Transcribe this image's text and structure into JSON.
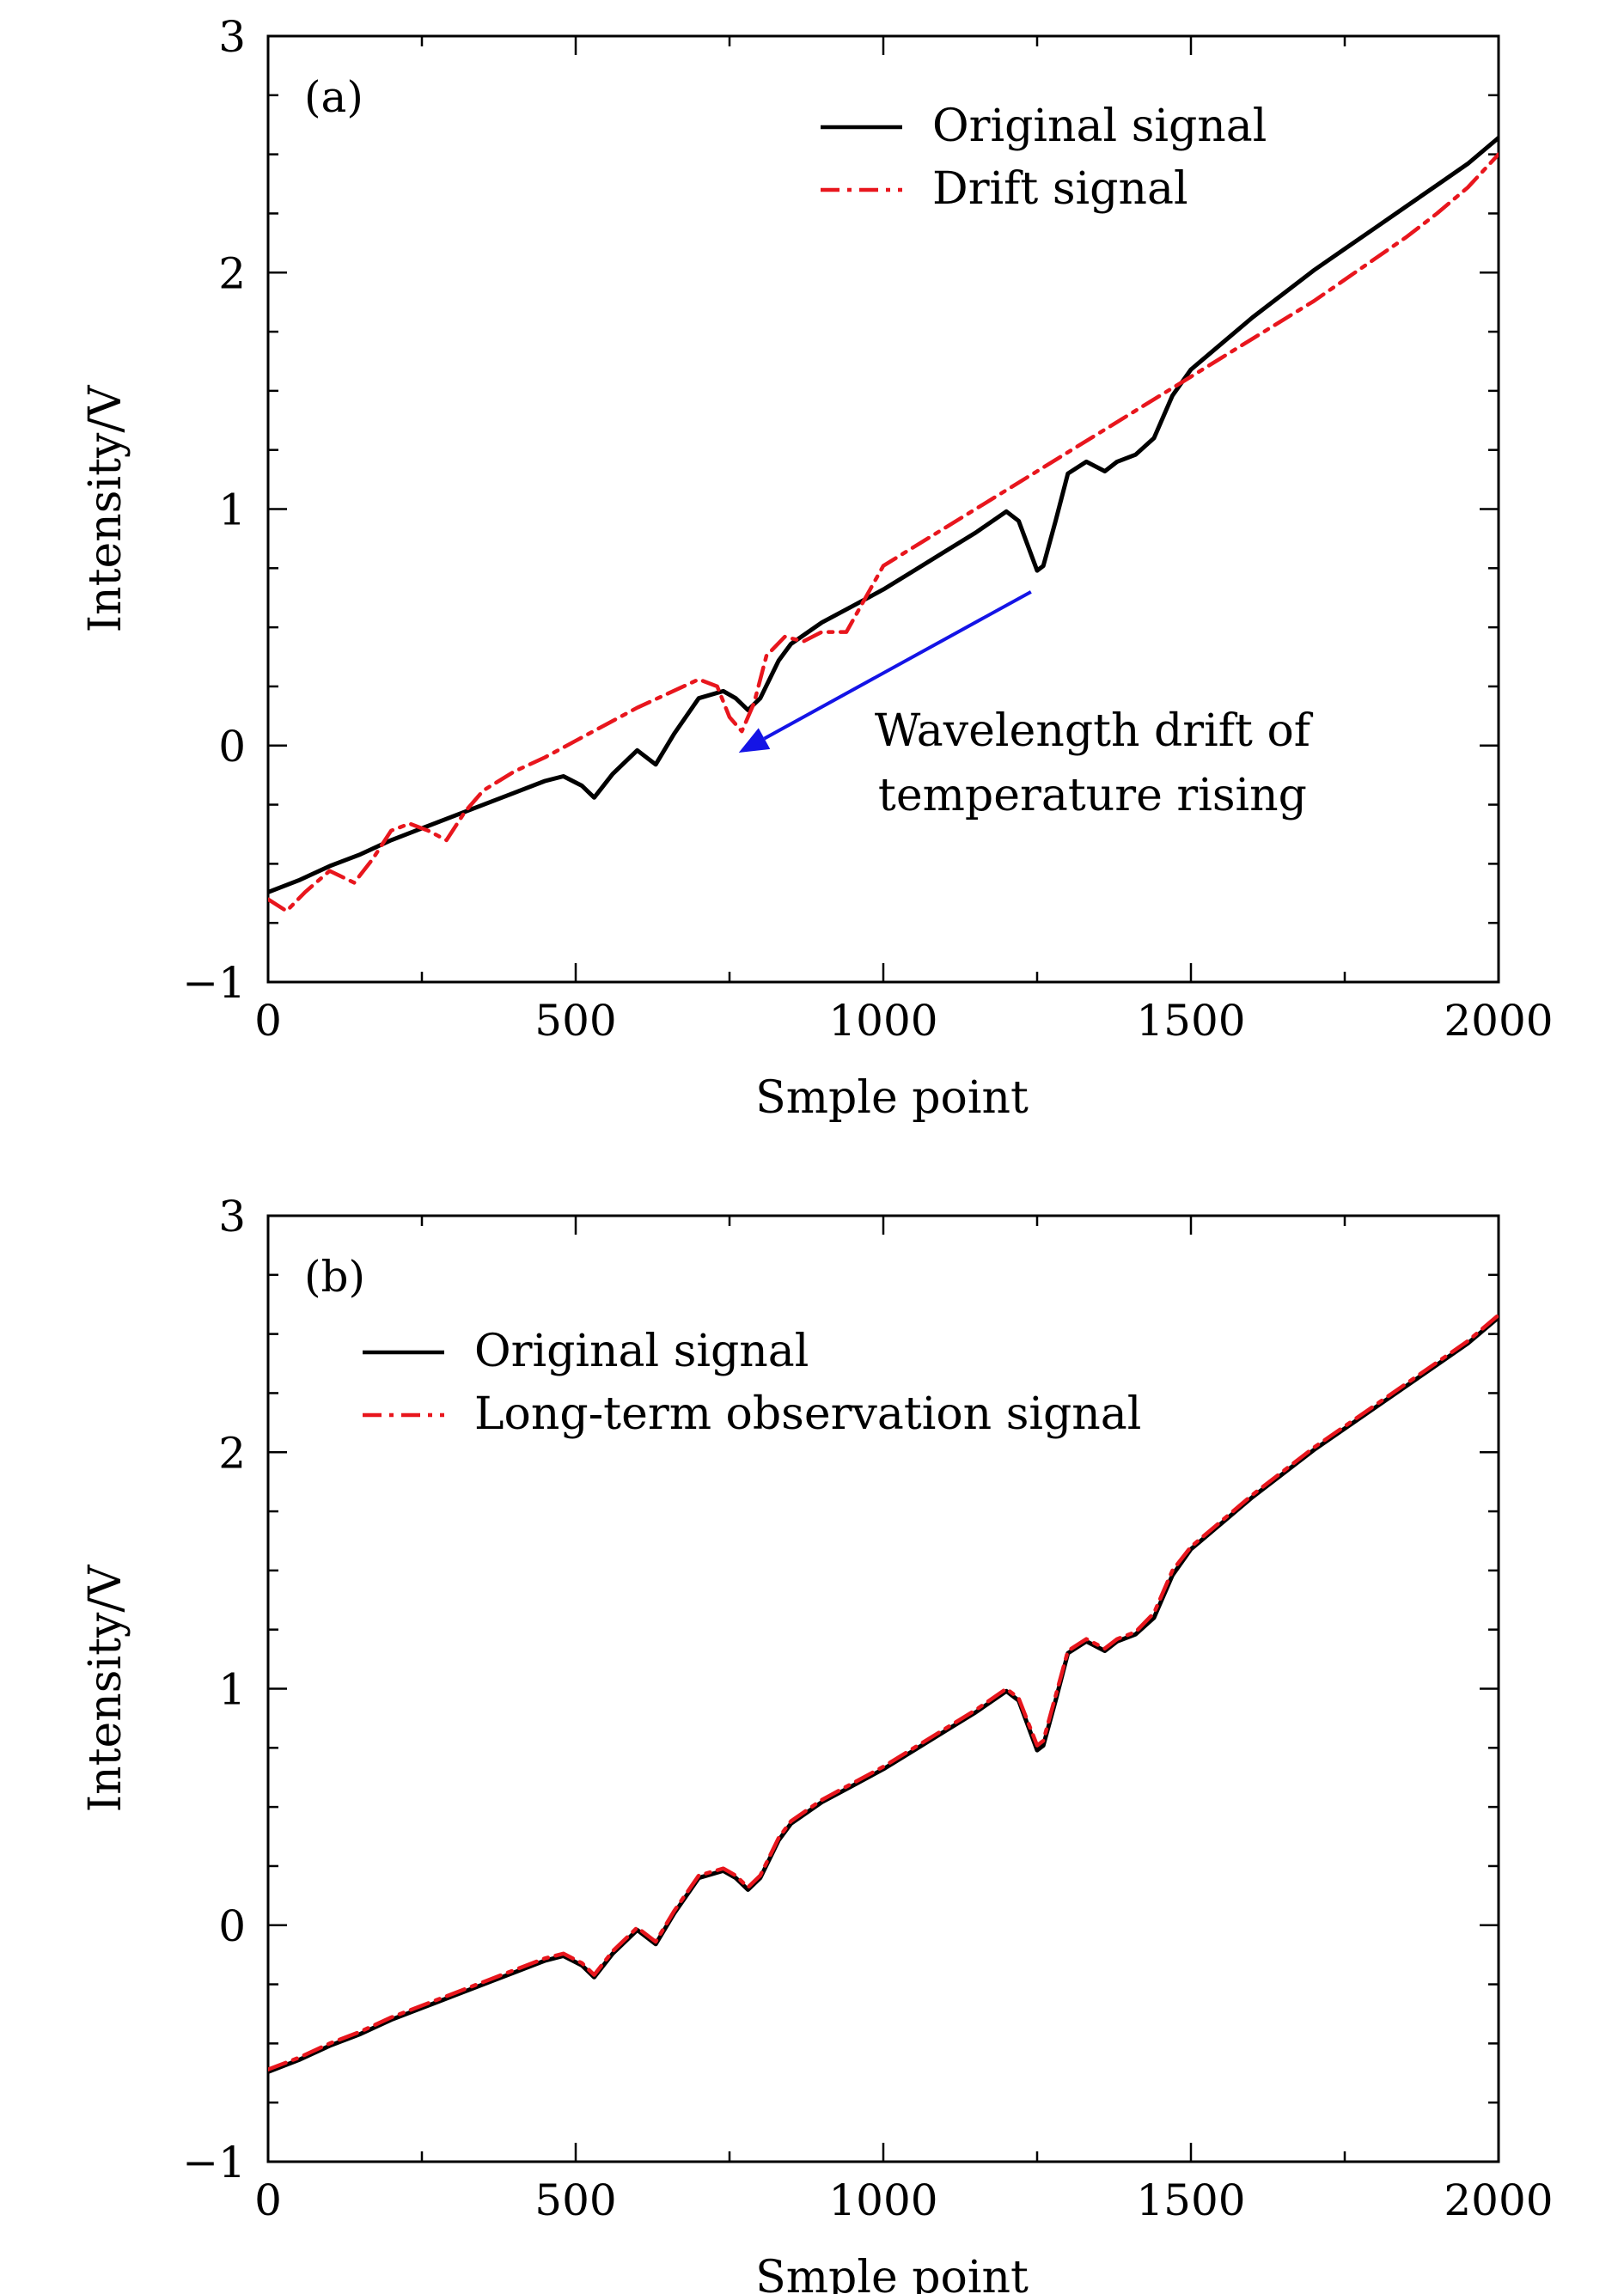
{
  "chart_data": [
    {
      "type": "line",
      "panel_label": "(a)",
      "xlabel": "Smple point",
      "ylabel": "Intensity/V",
      "xlim": [
        0,
        2000
      ],
      "ylim": [
        -1,
        3
      ],
      "xticks": [
        "0",
        "500",
        "1000",
        "1500",
        "2000"
      ],
      "yticks": [
        "−1",
        "0",
        "1",
        "2",
        "3"
      ],
      "legend_position": "top-right",
      "series": [
        {
          "name": "Original signal",
          "color": "#000000",
          "style": "solid",
          "x": [
            0,
            50,
            100,
            150,
            200,
            250,
            300,
            350,
            400,
            450,
            480,
            510,
            530,
            560,
            600,
            630,
            660,
            700,
            740,
            760,
            780,
            800,
            830,
            850,
            900,
            950,
            1000,
            1050,
            1100,
            1150,
            1200,
            1220,
            1250,
            1260,
            1280,
            1300,
            1330,
            1360,
            1380,
            1410,
            1440,
            1470,
            1500,
            1550,
            1600,
            1650,
            1700,
            1750,
            1800,
            1850,
            1900,
            1950,
            2000
          ],
          "y": [
            -0.62,
            -0.57,
            -0.51,
            -0.46,
            -0.4,
            -0.35,
            -0.3,
            -0.25,
            -0.2,
            -0.15,
            -0.13,
            -0.17,
            -0.22,
            -0.12,
            -0.02,
            -0.08,
            0.05,
            0.2,
            0.23,
            0.2,
            0.15,
            0.2,
            0.36,
            0.43,
            0.52,
            0.59,
            0.66,
            0.74,
            0.82,
            0.9,
            0.99,
            0.95,
            0.74,
            0.76,
            0.95,
            1.15,
            1.2,
            1.16,
            1.2,
            1.23,
            1.3,
            1.48,
            1.59,
            1.7,
            1.81,
            1.91,
            2.01,
            2.1,
            2.19,
            2.28,
            2.37,
            2.46,
            2.57
          ]
        },
        {
          "name": "Drift signal",
          "color": "#e8161d",
          "style": "dashdot",
          "x": [
            0,
            30,
            60,
            100,
            140,
            170,
            200,
            230,
            260,
            290,
            320,
            350,
            400,
            450,
            500,
            550,
            600,
            650,
            700,
            730,
            750,
            770,
            790,
            810,
            840,
            870,
            900,
            940,
            970,
            1000,
            1050,
            1100,
            1150,
            1200,
            1250,
            1300,
            1350,
            1400,
            1450,
            1500,
            1550,
            1600,
            1650,
            1700,
            1750,
            1800,
            1850,
            1900,
            1950,
            2000
          ],
          "y": [
            -0.65,
            -0.7,
            -0.62,
            -0.53,
            -0.58,
            -0.48,
            -0.36,
            -0.33,
            -0.36,
            -0.4,
            -0.28,
            -0.19,
            -0.11,
            -0.05,
            0.02,
            0.09,
            0.16,
            0.22,
            0.28,
            0.25,
            0.12,
            0.06,
            0.18,
            0.38,
            0.46,
            0.44,
            0.48,
            0.48,
            0.62,
            0.76,
            0.84,
            0.92,
            1.0,
            1.08,
            1.16,
            1.24,
            1.32,
            1.4,
            1.48,
            1.56,
            1.64,
            1.72,
            1.8,
            1.88,
            1.97,
            2.06,
            2.15,
            2.25,
            2.36,
            2.5
          ]
        }
      ],
      "annotation": {
        "lines": [
          "Wavelength drift of",
          "temperature rising"
        ],
        "arrow_color": "#1414e6",
        "arrow_from": [
          1240,
          0.65
        ],
        "arrow_to": [
          765,
          -0.03
        ],
        "text_anchor": [
          1340,
          0.0
        ]
      }
    },
    {
      "type": "line",
      "panel_label": "(b)",
      "xlabel": "Smple point",
      "ylabel": "Intensity/V",
      "xlim": [
        0,
        2000
      ],
      "ylim": [
        -1,
        3
      ],
      "xticks": [
        "0",
        "500",
        "1000",
        "1500",
        "2000"
      ],
      "yticks": [
        "−1",
        "0",
        "1",
        "2",
        "3"
      ],
      "legend_position": "top-left",
      "series": [
        {
          "name": "Original signal",
          "color": "#000000",
          "style": "solid",
          "x": [
            0,
            50,
            100,
            150,
            200,
            250,
            300,
            350,
            400,
            450,
            480,
            510,
            530,
            560,
            600,
            630,
            660,
            700,
            740,
            760,
            780,
            800,
            830,
            850,
            900,
            950,
            1000,
            1050,
            1100,
            1150,
            1200,
            1220,
            1250,
            1260,
            1280,
            1300,
            1330,
            1360,
            1380,
            1410,
            1440,
            1470,
            1500,
            1550,
            1600,
            1650,
            1700,
            1750,
            1800,
            1850,
            1900,
            1950,
            2000
          ],
          "y": [
            -0.62,
            -0.57,
            -0.51,
            -0.46,
            -0.4,
            -0.35,
            -0.3,
            -0.25,
            -0.2,
            -0.15,
            -0.13,
            -0.17,
            -0.22,
            -0.12,
            -0.02,
            -0.08,
            0.05,
            0.2,
            0.23,
            0.2,
            0.15,
            0.2,
            0.36,
            0.43,
            0.52,
            0.59,
            0.66,
            0.74,
            0.82,
            0.9,
            0.99,
            0.95,
            0.74,
            0.76,
            0.95,
            1.15,
            1.2,
            1.16,
            1.2,
            1.23,
            1.3,
            1.48,
            1.59,
            1.7,
            1.81,
            1.91,
            2.01,
            2.1,
            2.19,
            2.28,
            2.37,
            2.46,
            2.57
          ]
        },
        {
          "name": "Long-term observation signal",
          "color": "#e8161d",
          "style": "dashdot",
          "x": [
            0,
            50,
            100,
            150,
            200,
            250,
            300,
            350,
            400,
            450,
            480,
            510,
            530,
            560,
            600,
            630,
            660,
            700,
            740,
            760,
            780,
            800,
            830,
            850,
            900,
            950,
            1000,
            1050,
            1100,
            1150,
            1200,
            1220,
            1250,
            1260,
            1280,
            1300,
            1330,
            1360,
            1380,
            1410,
            1440,
            1470,
            1500,
            1550,
            1600,
            1650,
            1700,
            1750,
            1800,
            1850,
            1900,
            1950,
            2000
          ],
          "y": [
            -0.61,
            -0.56,
            -0.5,
            -0.45,
            -0.39,
            -0.34,
            -0.29,
            -0.24,
            -0.19,
            -0.14,
            -0.12,
            -0.16,
            -0.21,
            -0.11,
            -0.01,
            -0.07,
            0.06,
            0.21,
            0.24,
            0.21,
            0.16,
            0.21,
            0.37,
            0.44,
            0.53,
            0.6,
            0.67,
            0.75,
            0.83,
            0.91,
            1.0,
            0.96,
            0.76,
            0.78,
            0.97,
            1.16,
            1.21,
            1.17,
            1.21,
            1.24,
            1.32,
            1.5,
            1.6,
            1.71,
            1.82,
            1.92,
            2.02,
            2.11,
            2.2,
            2.29,
            2.38,
            2.47,
            2.58
          ]
        }
      ]
    }
  ]
}
